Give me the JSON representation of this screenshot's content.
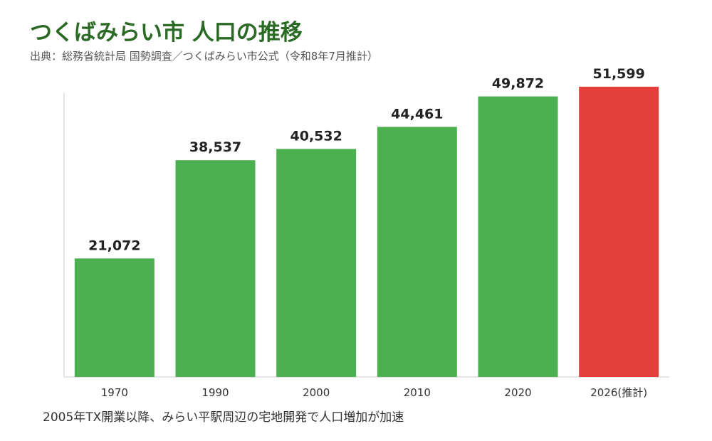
{
  "header": {
    "title": "つくばみらい市 人口の推移",
    "subtitle": "出典：総務省統計局 国勢調査／つくばみらい市公式（令和8年7月推計）"
  },
  "footnote": "2005年TX開業以降、みらい平駅周辺の宅地開発で人口増加が加速",
  "colors": {
    "actual": "#4caf50",
    "estimate": "#e53f3c",
    "title": "#2a6a24",
    "axis": "#cccccc"
  },
  "chart_data": {
    "type": "bar",
    "title": "つくばみらい市 人口の推移",
    "xlabel": "",
    "ylabel": "",
    "ylim": [
      0,
      55000
    ],
    "grid": false,
    "categories": [
      "1970",
      "1990",
      "2000",
      "2010",
      "2020",
      "2026(推計)"
    ],
    "values": [
      21072,
      38537,
      40532,
      44461,
      49872,
      51599
    ],
    "value_labels": [
      "21,072",
      "38,537",
      "40,532",
      "44,461",
      "49,872",
      "51,599"
    ],
    "estimated": [
      false,
      false,
      false,
      false,
      false,
      true
    ]
  }
}
